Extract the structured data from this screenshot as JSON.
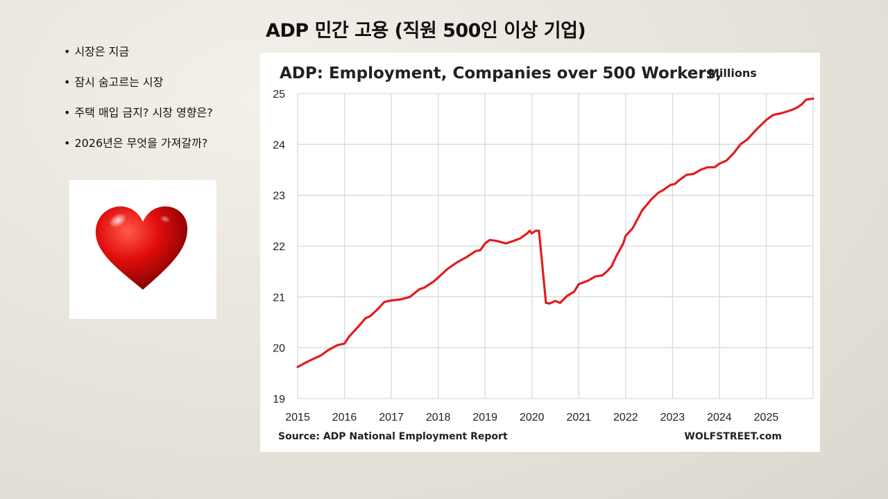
{
  "slide": {
    "title": "ADP 민간 고용 (직원 500인 이상 기업)",
    "bullets": [
      "시장은 지금",
      "잠시 숨고르는 시장",
      "주택 매입 금지? 시장 영향은?",
      "2026년은 무엇을 가져갈까?"
    ],
    "bullet_symbol": "•",
    "heart_icon": "heart-icon"
  },
  "chart_data": {
    "type": "line",
    "title": "ADP: Employment, Companies over 500 Workers,",
    "subtitle": "Millions",
    "source": "Source: ADP National Employment Report",
    "watermark": "WOLFSTREET.com",
    "x_ticks": [
      "2015",
      "2016",
      "2017",
      "2018",
      "2019",
      "2020",
      "2021",
      "2022",
      "2023",
      "2024",
      "2025"
    ],
    "y_ticks": [
      "19",
      "20",
      "21",
      "22",
      "23",
      "24",
      "25"
    ],
    "xlim": [
      2015,
      2026
    ],
    "ylim": [
      19,
      25
    ],
    "grid": true,
    "line_color": "#e31b1b",
    "series": [
      {
        "x": [
          2015.0,
          2015.2,
          2015.5,
          2015.65,
          2015.85,
          2016.0,
          2016.1,
          2016.3,
          2016.45,
          2016.55,
          2016.7,
          2016.85,
          2017.0,
          2017.2,
          2017.4,
          2017.6,
          2017.7,
          2017.9,
          2018.0,
          2018.2,
          2018.4,
          2018.6,
          2018.8,
          2018.9,
          2019.0,
          2019.1,
          2019.25,
          2019.45,
          2019.6,
          2019.75,
          2019.9,
          2019.95,
          2020.0,
          2020.08,
          2020.15,
          2020.3,
          2020.38,
          2020.5,
          2020.6,
          2020.75,
          2020.9,
          2021.0,
          2021.2,
          2021.35,
          2021.5,
          2021.6,
          2021.7,
          2021.8,
          2021.95,
          2022.0,
          2022.15,
          2022.35,
          2022.55,
          2022.7,
          2022.8,
          2022.95,
          2023.05,
          2023.15,
          2023.3,
          2023.45,
          2023.6,
          2023.75,
          2023.9,
          2024.0,
          2024.15,
          2024.3,
          2024.45,
          2024.6,
          2024.8,
          2025.0,
          2025.15,
          2025.35,
          2025.55,
          2025.65,
          2025.75,
          2025.85,
          2026.0
        ],
        "values": [
          19.62,
          19.72,
          19.85,
          19.95,
          20.05,
          20.08,
          20.22,
          20.42,
          20.58,
          20.62,
          20.75,
          20.9,
          20.93,
          20.95,
          21.0,
          21.15,
          21.18,
          21.3,
          21.38,
          21.55,
          21.68,
          21.78,
          21.9,
          21.92,
          22.05,
          22.12,
          22.1,
          22.05,
          22.1,
          22.15,
          22.25,
          22.3,
          22.25,
          22.3,
          22.3,
          20.88,
          20.87,
          20.92,
          20.88,
          21.02,
          21.1,
          21.25,
          21.32,
          21.4,
          21.42,
          21.5,
          21.6,
          21.8,
          22.05,
          22.2,
          22.35,
          22.7,
          22.92,
          23.05,
          23.1,
          23.2,
          23.22,
          23.3,
          23.4,
          23.42,
          23.5,
          23.55,
          23.55,
          23.62,
          23.68,
          23.82,
          24.0,
          24.1,
          24.3,
          24.48,
          24.58,
          24.62,
          24.68,
          24.72,
          24.78,
          24.88,
          24.9
        ]
      }
    ]
  }
}
